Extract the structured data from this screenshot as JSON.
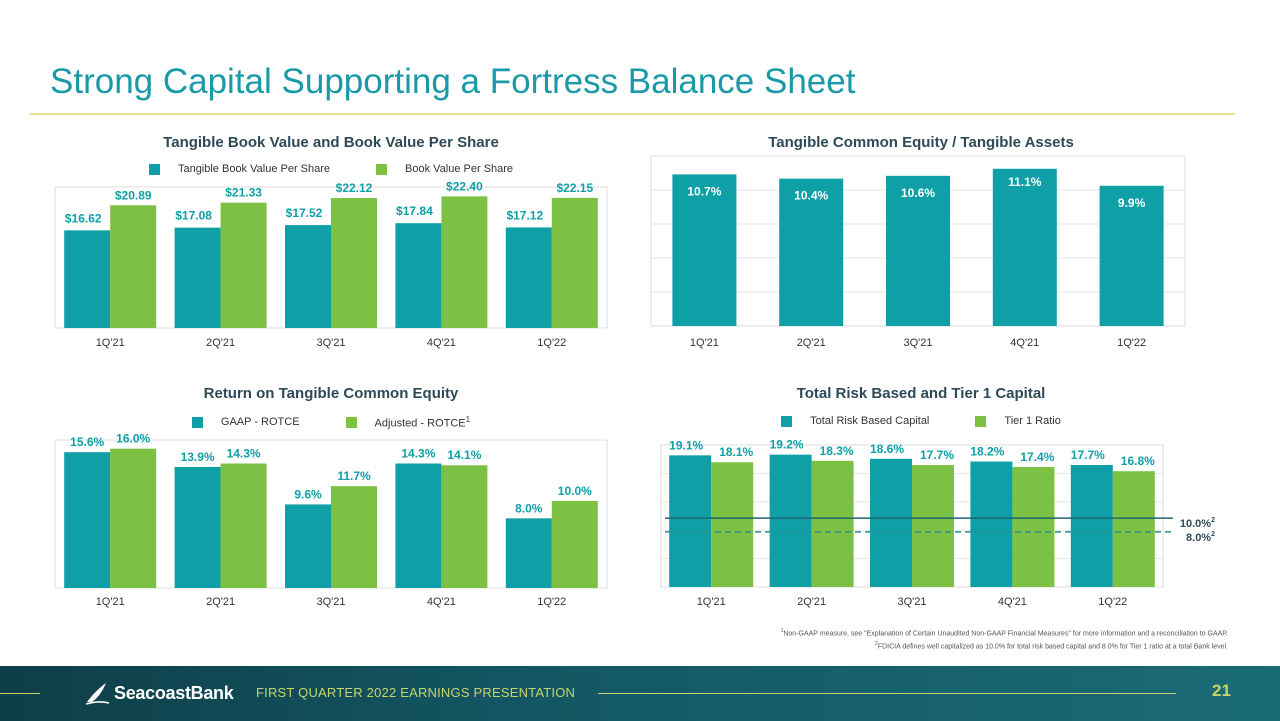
{
  "page": {
    "title": "Strong Capital Supporting a Fortress Balance Sheet",
    "footnote_1": "Non-GAAP measure, see \"Explanation of Certain Unaudited Non-GAAP Financial Measures\" for more information and a reconciliation to GAAP.",
    "footnote_2": "FDICIA defines well capitalized as 10.0% for total risk based capital and 8.0% for Tier 1 ratio at a total Bank level.",
    "footnote_1_mark": "1",
    "footnote_2_mark": "2"
  },
  "footer": {
    "logo_text": "SeacoastBank",
    "presentation": "FIRST QUARTER 2022 EARNINGS PRESENTATION",
    "page_number": "21"
  },
  "colors": {
    "teal": "#0e9fa7",
    "green": "#7cc143",
    "title": "#1a9aa8"
  },
  "chart_data": [
    {
      "id": "book",
      "type": "bar",
      "title": "Tangible Book Value and Book Value Per Share",
      "categories": [
        "1Q'21",
        "2Q'21",
        "3Q'21",
        "4Q'21",
        "1Q'22"
      ],
      "series": [
        {
          "name": "Tangible Book Value Per Share",
          "values": [
            16.62,
            17.08,
            17.52,
            17.84,
            17.12
          ],
          "labels": [
            "$16.62",
            "$17.08",
            "$17.52",
            "$17.84",
            "$17.12"
          ]
        },
        {
          "name": "Book Value Per Share",
          "values": [
            20.89,
            21.33,
            22.12,
            22.4,
            22.15
          ],
          "labels": [
            "$20.89",
            "$21.33",
            "$22.12",
            "$22.40",
            "$22.15"
          ]
        }
      ],
      "ylim": [
        0,
        24
      ],
      "legend": "top"
    },
    {
      "id": "tce",
      "type": "bar",
      "title": "Tangible Common Equity / Tangible Assets",
      "categories": [
        "1Q'21",
        "2Q'21",
        "3Q'21",
        "4Q'21",
        "1Q'22"
      ],
      "series": [
        {
          "values": [
            10.7,
            10.4,
            10.6,
            11.1,
            9.9
          ],
          "labels": [
            "10.7%",
            "10.4%",
            "10.6%",
            "11.1%",
            "9.9%"
          ]
        }
      ],
      "ylim": [
        0,
        12
      ],
      "grid": true
    },
    {
      "id": "rotce",
      "type": "bar",
      "title": "Return on Tangible Common Equity",
      "categories": [
        "1Q'21",
        "2Q'21",
        "3Q'21",
        "4Q'21",
        "1Q'22"
      ],
      "series": [
        {
          "name": "GAAP - ROTCE",
          "values": [
            15.6,
            13.9,
            9.6,
            14.3,
            8.0
          ],
          "labels": [
            "15.6%",
            "13.9%",
            "9.6%",
            "14.3%",
            "8.0%"
          ]
        },
        {
          "name": "Adjusted - ROTCE",
          "name_sup": "1",
          "values": [
            16.0,
            14.3,
            11.7,
            14.1,
            10.0
          ],
          "labels": [
            "16.0%",
            "14.3%",
            "11.7%",
            "14.1%",
            "10.0%"
          ]
        }
      ],
      "ylim": [
        0,
        17
      ],
      "legend": "top"
    },
    {
      "id": "risk",
      "type": "bar",
      "title": "Total Risk Based and Tier 1 Capital",
      "categories": [
        "1Q'21",
        "2Q'21",
        "3Q'21",
        "4Q'21",
        "1Q'22"
      ],
      "series": [
        {
          "name": "Total Risk Based Capital",
          "values": [
            19.1,
            19.2,
            18.6,
            18.2,
            17.7
          ],
          "labels": [
            "19.1%",
            "19.2%",
            "18.6%",
            "18.2%",
            "17.7%"
          ]
        },
        {
          "name": "Tier 1 Ratio",
          "values": [
            18.1,
            18.3,
            17.7,
            17.4,
            16.8
          ],
          "labels": [
            "18.1%",
            "18.3%",
            "17.7%",
            "17.4%",
            "16.8%"
          ]
        }
      ],
      "reference_lines": [
        {
          "value": 10.0,
          "label": "10.0%",
          "sup": "2",
          "style": "solid"
        },
        {
          "value": 8.0,
          "label": "8.0%",
          "sup": "2",
          "style": "dashed"
        }
      ],
      "ylim": [
        0,
        20.6
      ],
      "grid": true,
      "legend": "top"
    }
  ]
}
